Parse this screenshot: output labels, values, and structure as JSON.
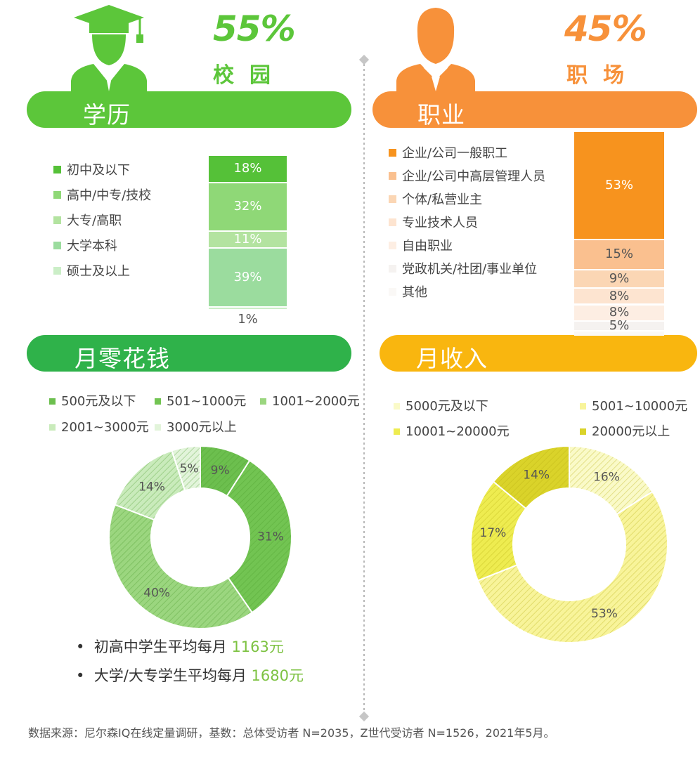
{
  "left": {
    "percent": "55%",
    "label": "校园",
    "accent": "#5cc63a",
    "section1_title": "学历",
    "section2_title": "月零花钱",
    "notes": [
      {
        "text": "初高中学生平均每月 ",
        "value": "1163元"
      },
      {
        "text": "大学/大专学生平均每月 ",
        "value": "1680元"
      }
    ]
  },
  "right": {
    "percent": "45%",
    "label": "职场",
    "accent": "#f7913a",
    "section1_title": "职业",
    "section2_title": "月收入"
  },
  "footer": "数据来源：尼尔森IQ在线定量调研，基数：总体受访者 N=2035，Z世代受访者 N=1526，2021年5月。",
  "chart_data": [
    {
      "type": "bar",
      "title": "学历",
      "stacked": true,
      "categories": [
        "初中及以下",
        "高中/中专/技校",
        "大专/高职",
        "大学本科",
        "硕士及以上"
      ],
      "values": [
        18,
        32,
        11,
        39,
        1
      ],
      "labels": [
        "18%",
        "32%",
        "11%",
        "39%",
        "1%"
      ],
      "colors": [
        "#55c138",
        "#8fd877",
        "#b3e3a0",
        "#9bdc9e",
        "#cbeec7"
      ],
      "legend": "left"
    },
    {
      "type": "bar",
      "title": "职业",
      "stacked": true,
      "categories": [
        "企业/公司一般职工",
        "企业/公司中高层管理人员",
        "个体/私营业主",
        "专业技术人员",
        "自由职业",
        "党政机关/社团/事业单位",
        "其他"
      ],
      "values": [
        53,
        15,
        9,
        8,
        8,
        5,
        2
      ],
      "labels": [
        "53%",
        "15%",
        "9%",
        "8%",
        "8%",
        "5%",
        ""
      ],
      "colors": [
        "#f7931e",
        "#fac08f",
        "#fbd6b4",
        "#fde4d0",
        "#fdeee3",
        "#f5f2f0",
        "#faf8f6"
      ],
      "legend": "left"
    },
    {
      "type": "pie",
      "title": "月零花钱",
      "categories": [
        "500元及以下",
        "501~1000元",
        "1001~2000元",
        "2001~3000元",
        "3000元以上"
      ],
      "values": [
        9,
        31,
        40,
        14,
        5
      ],
      "labels": [
        "9%",
        "31%",
        "40%",
        "14%",
        "5%"
      ],
      "colors": [
        "#6cbf4e",
        "#72c452",
        "#9bd67f",
        "#c9ebbb",
        "#e2f4da"
      ],
      "legend": "top"
    },
    {
      "type": "pie",
      "title": "月收入",
      "categories": [
        "5000元及以下",
        "5001~10000元",
        "10001~20000元",
        "20000元以上"
      ],
      "values": [
        16,
        53,
        17,
        14
      ],
      "labels": [
        "16%",
        "53%",
        "17%",
        "14%"
      ],
      "colors": [
        "#fafac8",
        "#f8f49a",
        "#eeec50",
        "#dad32a"
      ],
      "legend": "top"
    }
  ]
}
